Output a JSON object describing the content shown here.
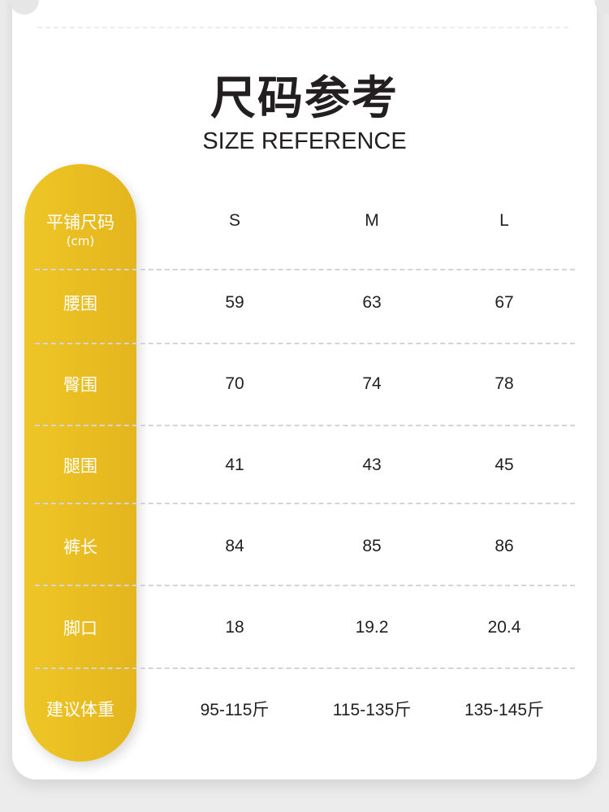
{
  "header": {
    "title": "尺码参考",
    "subtitle": "SIZE REFERENCE"
  },
  "table": {
    "corner_label": "平铺尺码",
    "corner_unit": "(cm)",
    "columns": [
      "S",
      "M",
      "L"
    ],
    "rows": [
      {
        "label": "腰围",
        "values": [
          "59",
          "63",
          "67"
        ]
      },
      {
        "label": "臀围",
        "values": [
          "70",
          "74",
          "78"
        ]
      },
      {
        "label": "腿围",
        "values": [
          "41",
          "43",
          "45"
        ]
      },
      {
        "label": "裤长",
        "values": [
          "84",
          "85",
          "86"
        ]
      },
      {
        "label": "脚口",
        "values": [
          "18",
          "19.2",
          "20.4"
        ]
      },
      {
        "label": "建议体重",
        "values": [
          "95-115斤",
          "115-135斤",
          "135-145斤"
        ]
      }
    ]
  },
  "colors": {
    "accent": "#e9bd22",
    "text": "#231f20",
    "background": "#ececec"
  }
}
